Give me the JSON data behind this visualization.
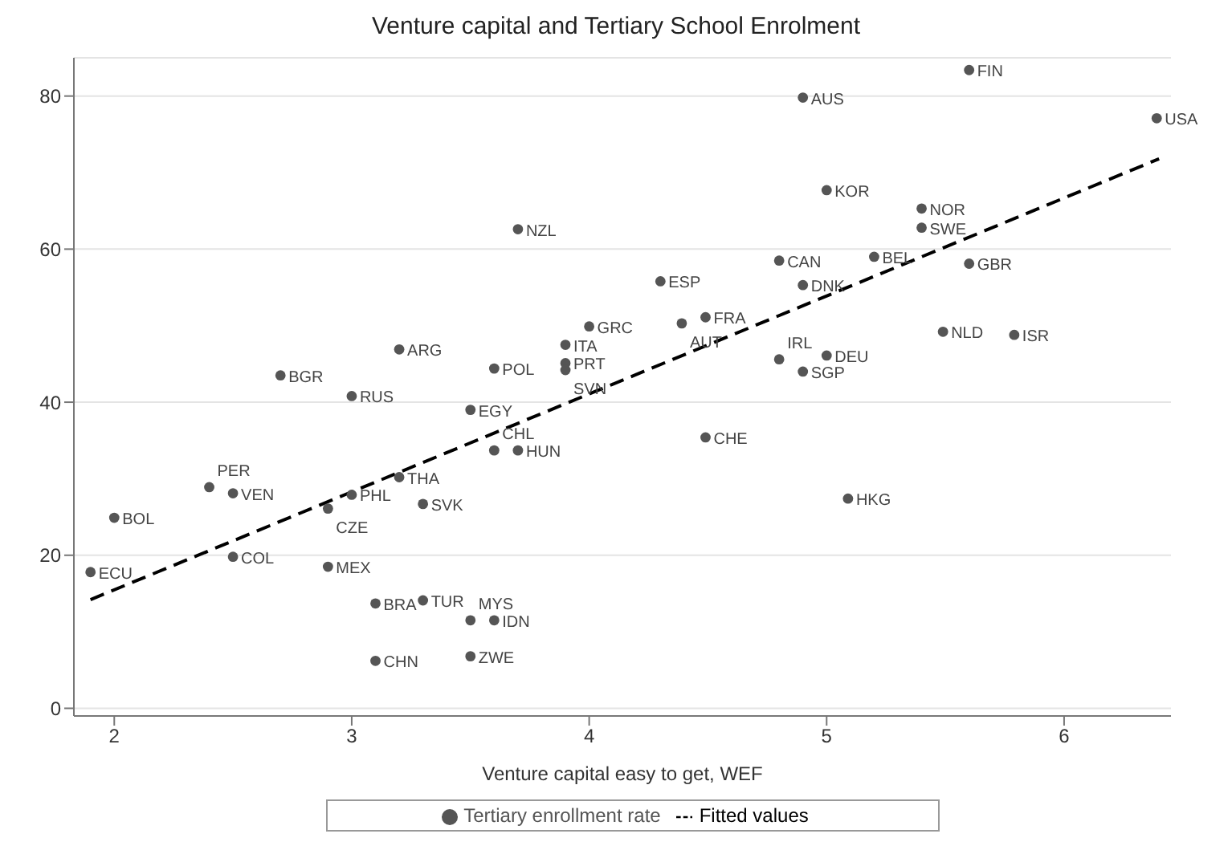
{
  "chart_data": {
    "type": "scatter",
    "title": "Venture capital and Tertiary School Enrolment",
    "xlabel": "Venture capital easy to get, WEF",
    "xlim": [
      1.83,
      6.45
    ],
    "xticks": [
      2,
      3,
      4,
      5,
      6
    ],
    "ylim": [
      -1,
      85
    ],
    "yticks": [
      0,
      20,
      40,
      60,
      80
    ],
    "grid": "y",
    "legend": "bottom",
    "series": [
      {
        "name": "Tertiary enrollment rate",
        "marker": "circle",
        "color": "#555555",
        "x": [
          5.6,
          4.9,
          6.39,
          5.0,
          5.4,
          5.4,
          4.8,
          5.2,
          5.6,
          4.3,
          4.9,
          4.39,
          4.49,
          5.49,
          5.79,
          4.8,
          5.0,
          4.9,
          3.7,
          4.0,
          3.9,
          3.9,
          3.9,
          3.6,
          3.2,
          2.7,
          3.0,
          3.5,
          3.6,
          3.7,
          3.2,
          2.4,
          2.5,
          3.0,
          2.9,
          3.3,
          2.0,
          2.5,
          1.9,
          2.9,
          3.1,
          3.3,
          3.5,
          3.6,
          3.1,
          3.5,
          4.49,
          5.09
        ],
        "values": [
          83.4,
          79.8,
          77.1,
          67.7,
          65.3,
          62.8,
          58.5,
          59.0,
          58.1,
          55.8,
          55.3,
          50.3,
          51.1,
          49.2,
          48.8,
          45.6,
          46.1,
          44.0,
          62.6,
          49.9,
          47.5,
          45.1,
          44.2,
          44.4,
          46.9,
          43.5,
          40.8,
          39.0,
          33.7,
          33.7,
          30.2,
          28.9,
          28.1,
          27.9,
          26.1,
          26.7,
          24.9,
          19.8,
          17.8,
          18.5,
          13.7,
          14.1,
          11.5,
          11.5,
          6.2,
          6.8,
          35.4,
          27.4
        ]
      },
      {
        "name": "Fitted values",
        "type": "line",
        "marker": "none",
        "line_style": "dashed",
        "color": "#000000",
        "x": [
          1.9,
          6.4
        ],
        "values": [
          14.2,
          71.8
        ]
      }
    ],
    "annotations": [
      {
        "text": "FIN",
        "x": 5.6,
        "y": 83.4
      },
      {
        "text": "AUS",
        "x": 4.9,
        "y": 79.8
      },
      {
        "text": "USA",
        "x": 6.39,
        "y": 77.1
      },
      {
        "text": "KOR",
        "x": 5.0,
        "y": 67.7
      },
      {
        "text": "NOR",
        "x": 5.4,
        "y": 65.3
      },
      {
        "text": "SWE",
        "x": 5.4,
        "y": 62.8
      },
      {
        "text": "CAN",
        "x": 4.8,
        "y": 58.5
      },
      {
        "text": "BEL",
        "x": 5.2,
        "y": 59.0
      },
      {
        "text": "GBR",
        "x": 5.6,
        "y": 58.1
      },
      {
        "text": "ESP",
        "x": 4.3,
        "y": 55.8
      },
      {
        "text": "DNK",
        "x": 4.9,
        "y": 55.3
      },
      {
        "text": "AUT",
        "x": 4.39,
        "y": 50.3
      },
      {
        "text": "FRA",
        "x": 4.49,
        "y": 51.1
      },
      {
        "text": "NLD",
        "x": 5.49,
        "y": 49.2
      },
      {
        "text": "ISR",
        "x": 5.79,
        "y": 48.8
      },
      {
        "text": "IRL",
        "x": 4.8,
        "y": 45.6
      },
      {
        "text": "DEU",
        "x": 5.0,
        "y": 46.1
      },
      {
        "text": "SGP",
        "x": 4.9,
        "y": 44.0
      },
      {
        "text": "NZL",
        "x": 3.7,
        "y": 62.6
      },
      {
        "text": "GRC",
        "x": 4.0,
        "y": 49.9
      },
      {
        "text": "ITA",
        "x": 3.9,
        "y": 47.5
      },
      {
        "text": "PRT",
        "x": 3.9,
        "y": 45.1
      },
      {
        "text": "SVN",
        "x": 3.9,
        "y": 44.2
      },
      {
        "text": "POL",
        "x": 3.6,
        "y": 44.4
      },
      {
        "text": "ARG",
        "x": 3.2,
        "y": 46.9
      },
      {
        "text": "BGR",
        "x": 2.7,
        "y": 43.5
      },
      {
        "text": "RUS",
        "x": 3.0,
        "y": 40.8
      },
      {
        "text": "EGY",
        "x": 3.5,
        "y": 39.0
      },
      {
        "text": "CHL",
        "x": 3.6,
        "y": 33.7
      },
      {
        "text": "HUN",
        "x": 3.7,
        "y": 33.7
      },
      {
        "text": "THA",
        "x": 3.2,
        "y": 30.2
      },
      {
        "text": "PER",
        "x": 2.4,
        "y": 28.9
      },
      {
        "text": "VEN",
        "x": 2.5,
        "y": 28.1
      },
      {
        "text": "PHL",
        "x": 3.0,
        "y": 27.9
      },
      {
        "text": "CZE",
        "x": 2.9,
        "y": 26.1
      },
      {
        "text": "SVK",
        "x": 3.3,
        "y": 26.7
      },
      {
        "text": "BOL",
        "x": 2.0,
        "y": 24.9
      },
      {
        "text": "COL",
        "x": 2.5,
        "y": 19.8
      },
      {
        "text": "ECU",
        "x": 1.9,
        "y": 17.8
      },
      {
        "text": "MEX",
        "x": 2.9,
        "y": 18.5
      },
      {
        "text": "BRA",
        "x": 3.1,
        "y": 13.7
      },
      {
        "text": "TUR",
        "x": 3.3,
        "y": 14.1
      },
      {
        "text": "MYS",
        "x": 3.5,
        "y": 11.5
      },
      {
        "text": "IDN",
        "x": 3.6,
        "y": 11.5
      },
      {
        "text": "CHN",
        "x": 3.1,
        "y": 6.2
      },
      {
        "text": "ZWE",
        "x": 3.5,
        "y": 6.8
      },
      {
        "text": "CHE",
        "x": 4.49,
        "y": 35.4
      },
      {
        "text": "HKG",
        "x": 5.09,
        "y": 27.4
      }
    ]
  }
}
